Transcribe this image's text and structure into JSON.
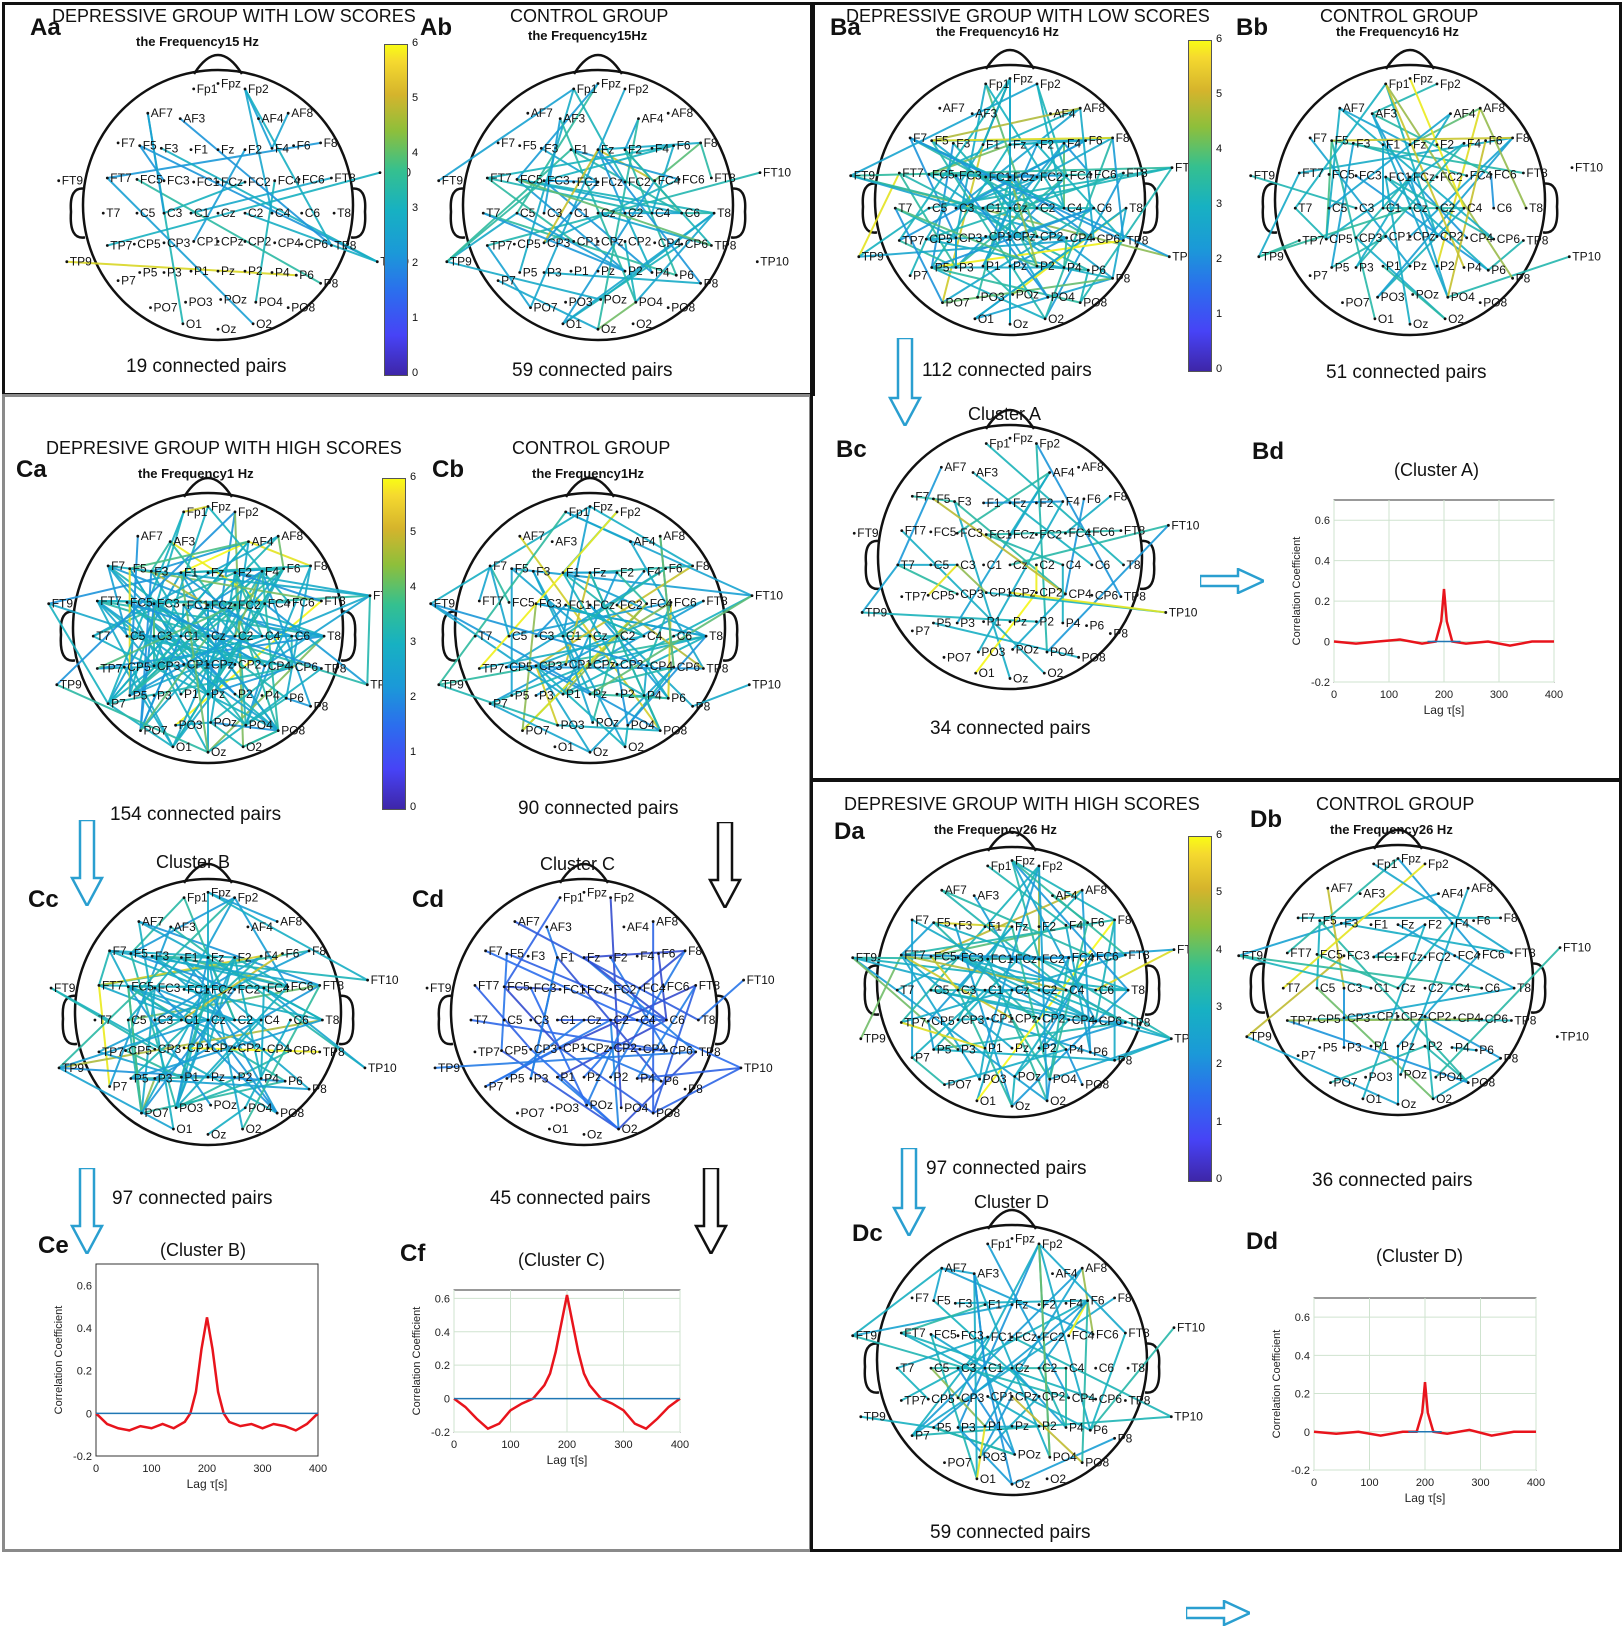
{
  "colorbar_ticks": [
    "0",
    "1",
    "2",
    "3",
    "4",
    "5",
    "6"
  ],
  "electrodes": [
    "Fp1",
    "Fpz",
    "Fp2",
    "AF7",
    "AF3",
    "AF4",
    "AF8",
    "F7",
    "F5",
    "F3",
    "F1",
    "Fz",
    "F2",
    "F4",
    "F6",
    "F8",
    "FT9",
    "FT7",
    "FC5",
    "FC3",
    "FC1",
    "FCz",
    "FC2",
    "FC4",
    "FC6",
    "FT8",
    "FT10",
    "T7",
    "C5",
    "C3",
    "C1",
    "Cz",
    "C2",
    "C4",
    "C6",
    "T8",
    "TP7",
    "CP5",
    "CP3",
    "CP1",
    "CPz",
    "CP2",
    "CP4",
    "CP6",
    "TP8",
    "TP9",
    "TP10",
    "P7",
    "P5",
    "P3",
    "P1",
    "Pz",
    "P2",
    "P4",
    "P6",
    "P8",
    "PO7",
    "PO3",
    "POz",
    "PO4",
    "PO8",
    "O1",
    "Oz",
    "O2"
  ],
  "panels": {
    "Aa": {
      "label": "Aa",
      "group": "DEPRESSIVE GROUP WITH LOW SCORES",
      "freq": "the Frequency15 Hz",
      "count": "19 connected pairs"
    },
    "Ab": {
      "label": "Ab",
      "group": "CONTROL GROUP",
      "freq": "the Frequency15Hz",
      "count": "59 connected pairs"
    },
    "Ba": {
      "label": "Ba",
      "group": "DEPRESSIVE GROUP WITH LOW SCORES",
      "freq": "the Frequency16 Hz",
      "count": "112 connected pairs"
    },
    "Bb": {
      "label": "Bb",
      "group": "CONTROL GROUP",
      "freq": "the Frequency16 Hz",
      "count": "51 connected pairs"
    },
    "Bc": {
      "label": "Bc",
      "cluster": "Cluster A",
      "count": "34 connected pairs"
    },
    "Bd": {
      "label": "Bd"
    },
    "Ca": {
      "label": "Ca",
      "group": "DEPRESIVE GROUP WITH HIGH SCORES",
      "freq": "the Frequency1 Hz",
      "count": "154 connected pairs"
    },
    "Cb": {
      "label": "Cb",
      "group": "CONTROL GROUP",
      "freq": "the Frequency1Hz",
      "count": "90 connected pairs"
    },
    "Cc": {
      "label": "Cc",
      "cluster": "Cluster B",
      "count": "97 connected pairs"
    },
    "Cd": {
      "label": "Cd",
      "cluster": "Cluster C",
      "count": "45 connected pairs"
    },
    "Ce": {
      "label": "Ce"
    },
    "Cf": {
      "label": "Cf"
    },
    "Da": {
      "label": "Da",
      "group": "DEPRESIVE GROUP WITH HIGH SCORES",
      "freq": "the Frequency26 Hz",
      "count": "97 connected pairs"
    },
    "Db": {
      "label": "Db",
      "group": "CONTROL GROUP",
      "freq": "the Frequency26 Hz",
      "count": "36 connected pairs"
    },
    "Dc": {
      "label": "Dc",
      "cluster": "Cluster D",
      "count": "59 connected pairs"
    },
    "Dd": {
      "label": "Dd"
    }
  },
  "chart_data": [
    {
      "panel": "Bd",
      "type": "line",
      "title": "(Cluster A)",
      "xlabel": "Lag τ[s]",
      "ylabel": "Correlation Coefficient",
      "xlim": [
        0,
        400
      ],
      "ylim": [
        -0.2,
        0.7
      ],
      "xticks": [
        0,
        100,
        200,
        300,
        400
      ],
      "yticks": [
        -0.2,
        0,
        0.2,
        0.4,
        0.6
      ],
      "grid": true,
      "series": [
        {
          "color": "#e8141c",
          "x": [
            0,
            40,
            80,
            120,
            160,
            185,
            195,
            200,
            205,
            215,
            240,
            280,
            320,
            360,
            400
          ],
          "y": [
            0,
            -0.01,
            0,
            0.01,
            -0.01,
            0,
            0.1,
            0.26,
            0.1,
            0,
            -0.01,
            0,
            -0.02,
            0,
            0
          ]
        },
        {
          "color": "#1f77b4",
          "x": [
            170,
            230
          ],
          "y": [
            0,
            0
          ]
        }
      ]
    },
    {
      "panel": "Ce",
      "type": "line",
      "title": "(Cluster B)",
      "xlabel": "Lag τ[s]",
      "ylabel": "Correlation Coefficient",
      "xlim": [
        0,
        400
      ],
      "ylim": [
        -0.2,
        0.7
      ],
      "xticks": [
        0,
        100,
        200,
        300,
        400
      ],
      "yticks": [
        -0.2,
        0,
        0.2,
        0.4,
        0.6
      ],
      "grid": false,
      "series": [
        {
          "color": "#e8141c",
          "x": [
            0,
            20,
            40,
            60,
            80,
            100,
            120,
            140,
            160,
            170,
            180,
            190,
            200,
            210,
            220,
            230,
            240,
            260,
            280,
            300,
            320,
            340,
            360,
            380,
            400
          ],
          "y": [
            0,
            -0.05,
            -0.07,
            -0.08,
            -0.06,
            -0.07,
            -0.05,
            -0.07,
            -0.04,
            0,
            0.1,
            0.3,
            0.45,
            0.3,
            0.1,
            0,
            -0.04,
            -0.06,
            -0.05,
            -0.07,
            -0.05,
            -0.06,
            -0.08,
            -0.05,
            0
          ]
        },
        {
          "color": "#1f77b4",
          "x": [
            0,
            400
          ],
          "y": [
            0,
            0
          ]
        }
      ]
    },
    {
      "panel": "Cf",
      "type": "line",
      "title": "(Cluster C)",
      "xlabel": "Lag τ[s]",
      "ylabel": "Correlation Coefficient",
      "xlim": [
        0,
        400
      ],
      "ylim": [
        -0.2,
        0.65
      ],
      "xticks": [
        0,
        100,
        200,
        300,
        400
      ],
      "yticks": [
        -0.2,
        0,
        0.2,
        0.4,
        0.6
      ],
      "grid": true,
      "series": [
        {
          "color": "#e8141c",
          "x": [
            0,
            20,
            40,
            60,
            80,
            100,
            120,
            140,
            160,
            170,
            180,
            190,
            200,
            210,
            220,
            230,
            240,
            260,
            280,
            300,
            320,
            340,
            360,
            380,
            400
          ],
          "y": [
            0,
            -0.05,
            -0.12,
            -0.18,
            -0.15,
            -0.07,
            -0.03,
            0,
            0.08,
            0.15,
            0.28,
            0.45,
            0.62,
            0.45,
            0.28,
            0.15,
            0.08,
            0,
            -0.03,
            -0.07,
            -0.15,
            -0.18,
            -0.12,
            -0.05,
            0
          ]
        },
        {
          "color": "#1f77b4",
          "x": [
            0,
            400
          ],
          "y": [
            0,
            0
          ]
        }
      ]
    },
    {
      "panel": "Dd",
      "type": "line",
      "title": "(Cluster D)",
      "xlabel": "Lag τ[s]",
      "ylabel": "Correlation Coefficient",
      "xlim": [
        0,
        400
      ],
      "ylim": [
        -0.2,
        0.7
      ],
      "xticks": [
        0,
        100,
        200,
        300,
        400
      ],
      "yticks": [
        -0.2,
        0,
        0.2,
        0.4,
        0.6
      ],
      "grid": true,
      "series": [
        {
          "color": "#e8141c",
          "x": [
            0,
            40,
            80,
            120,
            160,
            185,
            195,
            200,
            205,
            215,
            240,
            280,
            320,
            360,
            400
          ],
          "y": [
            0,
            -0.01,
            0,
            -0.02,
            0,
            0,
            0.1,
            0.26,
            0.1,
            0,
            -0.01,
            0.01,
            -0.02,
            0,
            0
          ]
        },
        {
          "color": "#1f77b4",
          "x": [
            170,
            230
          ],
          "y": [
            0,
            0
          ]
        }
      ]
    }
  ]
}
